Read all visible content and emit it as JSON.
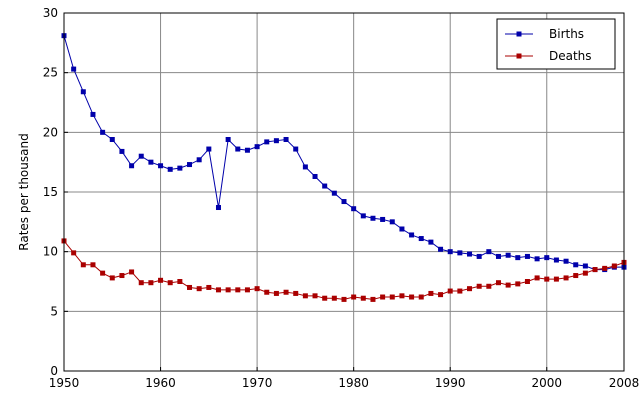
{
  "chart_data": {
    "type": "line",
    "title": "",
    "xlabel": "",
    "ylabel": "Rates per thousand",
    "xlim": [
      1950,
      2008
    ],
    "ylim": [
      0,
      30
    ],
    "x_ticks": [
      1950,
      1960,
      1970,
      1980,
      1990,
      2000,
      2008
    ],
    "y_ticks": [
      0,
      5,
      10,
      15,
      20,
      25,
      30
    ],
    "grid": true,
    "legend_position": "top-right",
    "x": [
      1950,
      1951,
      1952,
      1953,
      1954,
      1955,
      1956,
      1957,
      1958,
      1959,
      1960,
      1961,
      1962,
      1963,
      1964,
      1965,
      1966,
      1967,
      1968,
      1969,
      1970,
      1971,
      1972,
      1973,
      1974,
      1975,
      1976,
      1977,
      1978,
      1979,
      1980,
      1981,
      1982,
      1983,
      1984,
      1985,
      1986,
      1987,
      1988,
      1989,
      1990,
      1991,
      1992,
      1993,
      1994,
      1995,
      1996,
      1997,
      1998,
      1999,
      2000,
      2001,
      2002,
      2003,
      2004,
      2005,
      2006,
      2007,
      2008
    ],
    "series": [
      {
        "name": "Births",
        "color": "#0000aa",
        "marker": "square",
        "values": [
          28.1,
          25.3,
          23.4,
          21.5,
          20.0,
          19.4,
          18.4,
          17.2,
          18.0,
          17.5,
          17.2,
          16.9,
          17.0,
          17.3,
          17.7,
          18.6,
          13.7,
          19.4,
          18.6,
          18.5,
          18.8,
          19.2,
          19.3,
          19.4,
          18.6,
          17.1,
          16.3,
          15.5,
          14.9,
          14.2,
          13.6,
          13.0,
          12.8,
          12.7,
          12.5,
          11.9,
          11.4,
          11.1,
          10.8,
          10.2,
          10.0,
          9.9,
          9.8,
          9.6,
          10.0,
          9.6,
          9.7,
          9.5,
          9.6,
          9.4,
          9.5,
          9.3,
          9.2,
          8.9,
          8.8,
          8.5,
          8.5,
          8.7,
          8.7
        ]
      },
      {
        "name": "Deaths",
        "color": "#aa0000",
        "marker": "square",
        "values": [
          10.9,
          9.9,
          8.9,
          8.9,
          8.2,
          7.8,
          8.0,
          8.3,
          7.4,
          7.4,
          7.6,
          7.4,
          7.5,
          7.0,
          6.9,
          7.0,
          6.8,
          6.8,
          6.8,
          6.8,
          6.9,
          6.6,
          6.5,
          6.6,
          6.5,
          6.3,
          6.3,
          6.1,
          6.1,
          6.0,
          6.2,
          6.1,
          6.0,
          6.2,
          6.2,
          6.3,
          6.2,
          6.2,
          6.5,
          6.4,
          6.7,
          6.7,
          6.9,
          7.1,
          7.1,
          7.4,
          7.2,
          7.3,
          7.5,
          7.8,
          7.7,
          7.7,
          7.8,
          8.0,
          8.2,
          8.5,
          8.6,
          8.8,
          9.1
        ]
      }
    ]
  }
}
